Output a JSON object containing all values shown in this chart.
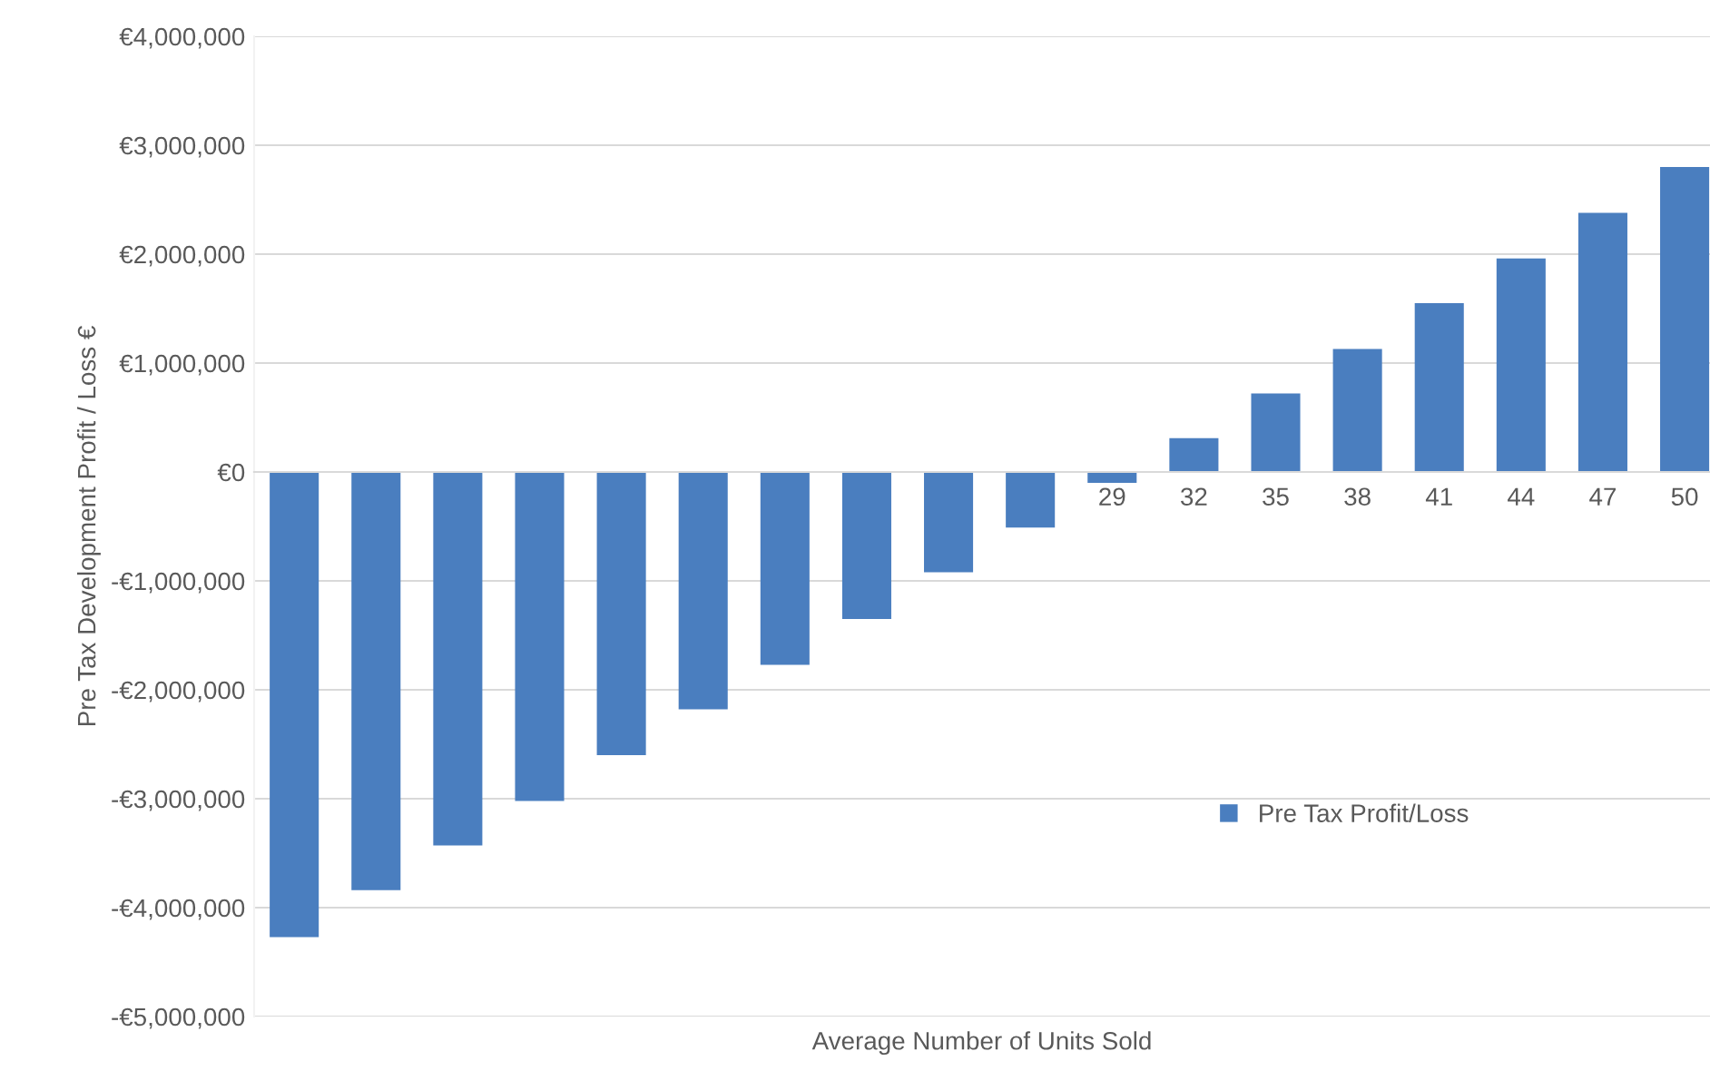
{
  "chart_data": {
    "type": "bar",
    "xlabel": "Average Number of Units Sold",
    "ylabel": "Pre Tax Development Profit / Loss €",
    "categories": [
      null,
      null,
      null,
      null,
      null,
      null,
      null,
      null,
      null,
      null,
      "29",
      "32",
      "35",
      "38",
      "41",
      "44",
      "47",
      "50"
    ],
    "series": [
      {
        "name": "Pre Tax Profit/Loss",
        "color": "#4a7ebf",
        "values": [
          -4270000,
          -3840000,
          -3430000,
          -3020000,
          -2600000,
          -2180000,
          -1770000,
          -1350000,
          -920000,
          -510000,
          -100000,
          310000,
          720000,
          1130000,
          1550000,
          1960000,
          2380000,
          2800000
        ]
      }
    ],
    "ylim": [
      -5000000,
      4000000
    ],
    "yticks": [
      {
        "value": -5000000,
        "label": "-€5,000,000"
      },
      {
        "value": -4000000,
        "label": "-€4,000,000"
      },
      {
        "value": -3000000,
        "label": "-€3,000,000"
      },
      {
        "value": -2000000,
        "label": "-€2,000,000"
      },
      {
        "value": -1000000,
        "label": "-€1,000,000"
      },
      {
        "value": 0,
        "label": "€0"
      },
      {
        "value": 1000000,
        "label": "€1,000,000"
      },
      {
        "value": 2000000,
        "label": "€2,000,000"
      },
      {
        "value": 3000000,
        "label": "€3,000,000"
      },
      {
        "value": 4000000,
        "label": "€4,000,000"
      }
    ],
    "grid": "y",
    "legend": "bottom right"
  }
}
